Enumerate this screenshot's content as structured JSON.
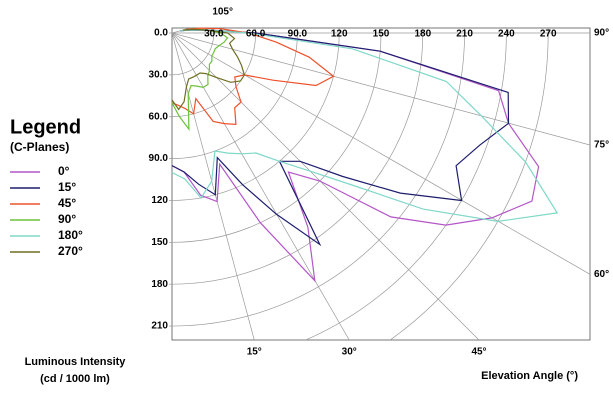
{
  "chart_data": {
    "type": "polar",
    "legend_title": "Legend",
    "legend_subtitle": "(C-Planes)",
    "y_label_line1": "Luminous Intensity",
    "y_label_line2": "(cd / 1000 lm)",
    "x_label": "Elevation Angle (°)",
    "xlim": [
      0,
      300
    ],
    "ylim": [
      0,
      220
    ],
    "xticks": [
      {
        "value": 30,
        "label": "30.0"
      },
      {
        "value": 60,
        "label": "60.0"
      },
      {
        "value": 90,
        "label": "90.0"
      },
      120,
      150,
      180,
      210,
      240,
      270
    ],
    "yticks": [
      {
        "value": 0,
        "label": "0.0"
      },
      {
        "value": 30,
        "label": "30.0"
      },
      {
        "value": 60,
        "label": "60.0"
      },
      {
        "value": 90,
        "label": "90.0"
      },
      120,
      150,
      180,
      210
    ],
    "angle_ticks": [
      {
        "value": 15,
        "label": "15°"
      },
      {
        "value": 30,
        "label": "30°"
      },
      {
        "value": 45,
        "label": "45°"
      },
      {
        "value": 60,
        "label": "60°"
      },
      {
        "value": 75,
        "label": "75°"
      },
      {
        "value": 90,
        "label": "90°"
      },
      {
        "value": 105,
        "label": "105°"
      }
    ],
    "angles": [
      0,
      5,
      10,
      15,
      20,
      25,
      30,
      35,
      40,
      45,
      50,
      55,
      60,
      65,
      70,
      75,
      80,
      85,
      90,
      95,
      100,
      105
    ],
    "series": [
      {
        "name": "0°",
        "color": "#b456c8",
        "values": [
          95,
          100,
          118,
          125,
          100,
          150,
          205,
          170,
          130,
          150,
          205,
          240,
          265,
          285,
          280,
          250,
          238,
          150,
          60,
          25,
          12,
          6
        ]
      },
      {
        "name": "15°",
        "color": "#1e1e6e",
        "values": [
          95,
          100,
          110,
          120,
          95,
          120,
          150,
          185,
          120,
          130,
          160,
          200,
          240,
          225,
          235,
          250,
          245,
          150,
          60,
          25,
          12,
          6
        ]
      },
      {
        "name": "45°",
        "color": "#f0502a",
        "values": [
          50,
          52,
          55,
          60,
          50,
          70,
          75,
          80,
          70,
          70,
          60,
          55,
          60,
          80,
          110,
          120,
          100,
          75,
          55,
          35,
          20,
          10
        ]
      },
      {
        "name": "90°",
        "color": "#6cc23a",
        "values": [
          50,
          60,
          70,
          45,
          40,
          42,
          45,
          45,
          40,
          38,
          35,
          35,
          33,
          33,
          33,
          35,
          38,
          40,
          35,
          25,
          15,
          8
        ]
      },
      {
        "name": "180°",
        "color": "#7fd8c8",
        "values": [
          100,
          105,
          120,
          110,
          90,
          95,
          100,
          105,
          120,
          140,
          170,
          220,
          270,
          305,
          270,
          230,
          200,
          130,
          55,
          25,
          12,
          6
        ]
      },
      {
        "name": "270°",
        "color": "#6e6e22",
        "values": [
          48,
          55,
          50,
          40,
          35,
          35,
          35,
          35,
          38,
          45,
          55,
          60,
          60,
          55,
          50,
          45,
          42,
          45,
          40,
          25,
          15,
          8
        ]
      }
    ]
  }
}
